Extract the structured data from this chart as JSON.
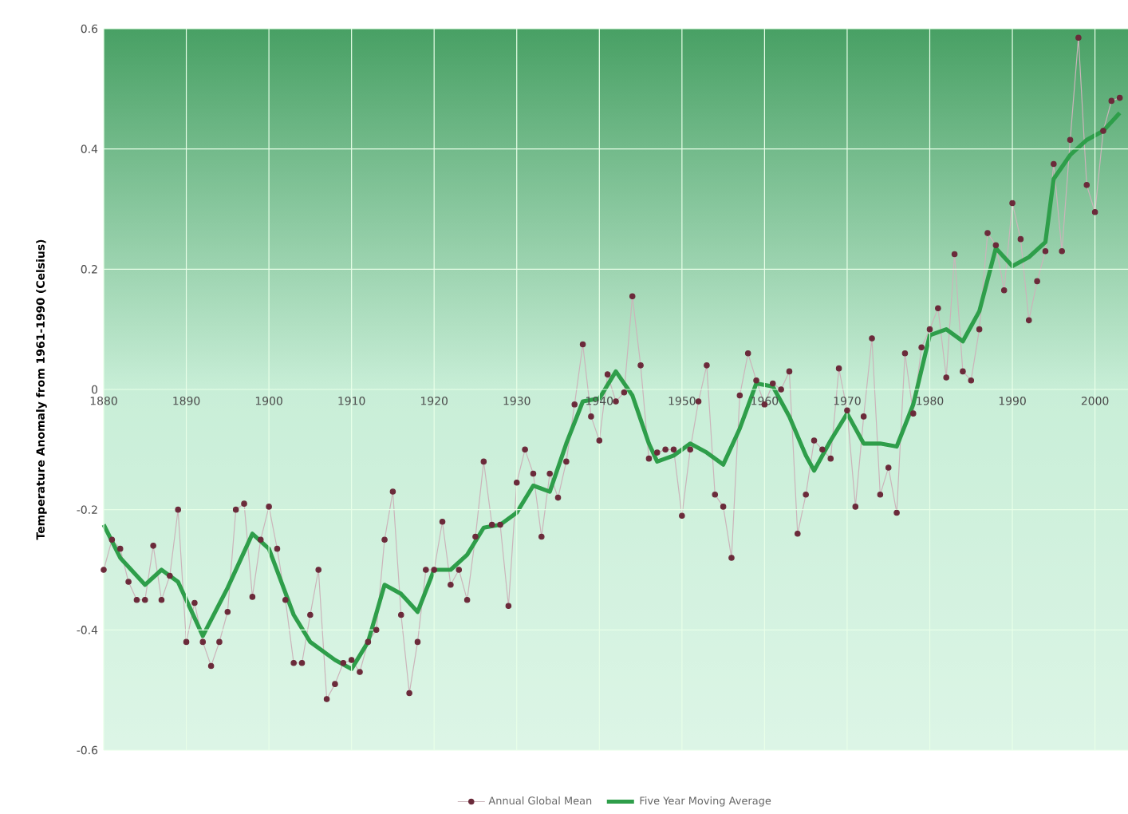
{
  "chart_data": {
    "type": "line",
    "ylabel": "Temperature Anomaly from 1961-1990 (Celsius)",
    "xlim": [
      1880,
      2004
    ],
    "ylim": [
      -0.6,
      0.6
    ],
    "xticks": [
      1880,
      1890,
      1900,
      1910,
      1920,
      1930,
      1940,
      1950,
      1960,
      1970,
      1980,
      1990,
      2000
    ],
    "yticks": [
      {
        "value": -0.6,
        "label": "-0.6"
      },
      {
        "value": -0.4,
        "label": "-0.4"
      },
      {
        "value": -0.2,
        "label": "-0.2"
      },
      {
        "value": 0,
        "label": "0"
      },
      {
        "value": 0.2,
        "label": "0.2"
      },
      {
        "value": 0.4,
        "label": "0.4"
      },
      {
        "value": 0.6,
        "label": "0.6"
      }
    ],
    "grid": true,
    "legend": "bottom",
    "line_style": "solid",
    "series": [
      {
        "name": "Annual Global Mean",
        "color": "#6b2a3a",
        "marker": "circle",
        "x": [
          1880,
          1881,
          1882,
          1883,
          1884,
          1885,
          1886,
          1887,
          1888,
          1889,
          1890,
          1891,
          1892,
          1893,
          1894,
          1895,
          1896,
          1897,
          1898,
          1899,
          1900,
          1901,
          1902,
          1903,
          1904,
          1905,
          1906,
          1907,
          1908,
          1909,
          1910,
          1911,
          1912,
          1913,
          1914,
          1915,
          1916,
          1917,
          1918,
          1919,
          1920,
          1921,
          1922,
          1923,
          1924,
          1925,
          1926,
          1927,
          1928,
          1929,
          1930,
          1931,
          1932,
          1933,
          1934,
          1935,
          1936,
          1937,
          1938,
          1939,
          1940,
          1941,
          1942,
          1943,
          1944,
          1945,
          1946,
          1947,
          1948,
          1949,
          1950,
          1951,
          1952,
          1953,
          1954,
          1955,
          1956,
          1957,
          1958,
          1959,
          1960,
          1961,
          1962,
          1963,
          1964,
          1965,
          1966,
          1967,
          1968,
          1969,
          1970,
          1971,
          1972,
          1973,
          1974,
          1975,
          1976,
          1977,
          1978,
          1979,
          1980,
          1981,
          1982,
          1983,
          1984,
          1985,
          1986,
          1987,
          1988,
          1989,
          1990,
          1991,
          1992,
          1993,
          1994,
          1995,
          1996,
          1997,
          1998,
          1999,
          2000,
          2001,
          2002,
          2003
        ],
        "values": [
          -0.3,
          -0.25,
          -0.265,
          -0.32,
          -0.35,
          -0.35,
          -0.26,
          -0.35,
          -0.31,
          -0.2,
          -0.42,
          -0.355,
          -0.42,
          -0.46,
          -0.42,
          -0.37,
          -0.2,
          -0.19,
          -0.345,
          -0.25,
          -0.195,
          -0.265,
          -0.35,
          -0.455,
          -0.455,
          -0.375,
          -0.3,
          -0.515,
          -0.49,
          -0.455,
          -0.45,
          -0.47,
          -0.42,
          -0.4,
          -0.25,
          -0.17,
          -0.375,
          -0.505,
          -0.42,
          -0.3,
          -0.3,
          -0.22,
          -0.325,
          -0.3,
          -0.35,
          -0.245,
          -0.12,
          -0.225,
          -0.225,
          -0.36,
          -0.155,
          -0.1,
          -0.14,
          -0.245,
          -0.14,
          -0.18,
          -0.12,
          -0.025,
          0.075,
          -0.045,
          -0.085,
          0.025,
          -0.02,
          -0.005,
          0.155,
          0.04,
          -0.115,
          -0.105,
          -0.1,
          -0.1,
          -0.21,
          -0.1,
          -0.02,
          0.04,
          -0.175,
          -0.195,
          -0.28,
          -0.01,
          0.06,
          0.015,
          -0.025,
          0.01,
          0.0,
          0.03,
          -0.24,
          -0.175,
          -0.085,
          -0.1,
          -0.115,
          0.035,
          -0.035,
          -0.195,
          -0.045,
          0.085,
          -0.175,
          -0.13,
          -0.205,
          0.06,
          -0.04,
          0.07,
          0.1,
          0.135,
          0.02,
          0.225,
          0.03,
          0.015,
          0.1,
          0.26,
          0.24,
          0.165,
          0.31,
          0.25,
          0.115,
          0.18,
          0.23,
          0.375,
          0.23,
          0.415,
          0.585,
          0.34,
          0.295,
          0.43,
          0.48,
          0.485
        ]
      },
      {
        "name": "Five Year Moving Average",
        "color": "#2e9e4a",
        "marker": "none",
        "x": [
          1880,
          1882,
          1885,
          1887,
          1889,
          1892,
          1895,
          1898,
          1900,
          1903,
          1905,
          1908,
          1910,
          1912,
          1914,
          1916,
          1918,
          1920,
          1922,
          1924,
          1926,
          1928,
          1930,
          1932,
          1934,
          1936,
          1938,
          1940,
          1942,
          1944,
          1946,
          1947,
          1949,
          1951,
          1953,
          1955,
          1957,
          1959,
          1961,
          1963,
          1965,
          1966,
          1968,
          1970,
          1972,
          1974,
          1976,
          1978,
          1980,
          1982,
          1984,
          1986,
          1988,
          1990,
          1992,
          1994,
          1995,
          1997,
          1999,
          2001,
          2003
        ],
        "values": [
          -0.225,
          -0.28,
          -0.325,
          -0.3,
          -0.32,
          -0.41,
          -0.33,
          -0.24,
          -0.265,
          -0.375,
          -0.42,
          -0.45,
          -0.465,
          -0.42,
          -0.325,
          -0.34,
          -0.37,
          -0.3,
          -0.3,
          -0.275,
          -0.23,
          -0.225,
          -0.205,
          -0.16,
          -0.17,
          -0.09,
          -0.02,
          -0.015,
          0.03,
          -0.01,
          -0.09,
          -0.12,
          -0.11,
          -0.09,
          -0.105,
          -0.125,
          -0.065,
          0.01,
          0.005,
          -0.045,
          -0.11,
          -0.135,
          -0.085,
          -0.04,
          -0.09,
          -0.09,
          -0.095,
          -0.025,
          0.09,
          0.1,
          0.08,
          0.13,
          0.235,
          0.205,
          0.22,
          0.245,
          0.35,
          0.39,
          0.415,
          0.43,
          0.46
        ]
      }
    ]
  }
}
